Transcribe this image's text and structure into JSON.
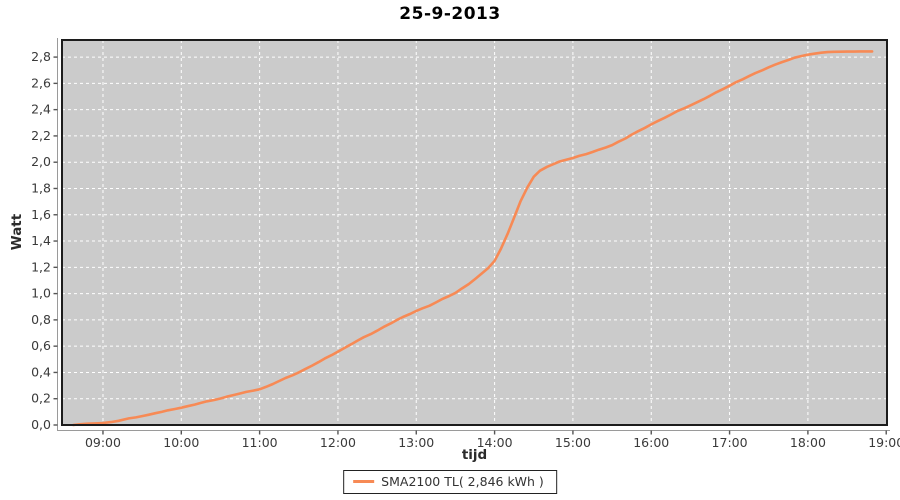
{
  "chart": {
    "title": "25-9-2013",
    "y_axis_title": "Watt",
    "x_axis_title": "tijd",
    "legend_label": "SMA2100 TL( 2,846 kWh )"
  },
  "colors": {
    "plot_bg": "#cbcbcb",
    "grid": "#ffffff",
    "line": "#f78a55",
    "plot_border": "#1c1c1c",
    "axis_line": "#9a9a9a",
    "tick_mark": "#555555",
    "tick_label": "#3a3a3a"
  },
  "chart_data": {
    "type": "line",
    "title": "25-9-2013",
    "xlabel": "tijd",
    "ylabel": "Watt",
    "legend_position": "bottom",
    "grid": true,
    "xlim": [
      8.477,
      19.01
    ],
    "ylim": [
      0,
      2.93
    ],
    "x_ticks": [
      {
        "value": 9,
        "label": "09:00"
      },
      {
        "value": 10,
        "label": "10:00"
      },
      {
        "value": 11,
        "label": "11:00"
      },
      {
        "value": 12,
        "label": "12:00"
      },
      {
        "value": 13,
        "label": "13:00"
      },
      {
        "value": 14,
        "label": "14:00"
      },
      {
        "value": 15,
        "label": "15:00"
      },
      {
        "value": 16,
        "label": "16:00"
      },
      {
        "value": 17,
        "label": "17:00"
      },
      {
        "value": 18,
        "label": "18:00"
      },
      {
        "value": 19,
        "label": "19:00"
      }
    ],
    "y_ticks": [
      {
        "value": 0.0,
        "label": "0,0"
      },
      {
        "value": 0.2,
        "label": "0,2"
      },
      {
        "value": 0.4,
        "label": "0,4"
      },
      {
        "value": 0.6,
        "label": "0,6"
      },
      {
        "value": 0.8,
        "label": "0,8"
      },
      {
        "value": 1.0,
        "label": "1,0"
      },
      {
        "value": 1.2,
        "label": "1,2"
      },
      {
        "value": 1.4,
        "label": "1,4"
      },
      {
        "value": 1.6,
        "label": "1,6"
      },
      {
        "value": 1.8,
        "label": "1,8"
      },
      {
        "value": 2.0,
        "label": "2,0"
      },
      {
        "value": 2.2,
        "label": "2,2"
      },
      {
        "value": 2.4,
        "label": "2,4"
      },
      {
        "value": 2.6,
        "label": "2,6"
      },
      {
        "value": 2.8,
        "label": "2,8"
      }
    ],
    "series": [
      {
        "name": "SMA2100 TL( 2,846 kWh )",
        "color": "#f78a55",
        "total_kwh_label": "2,846 kWh",
        "points": [
          [
            8.62,
            0.0
          ],
          [
            8.7,
            0.005
          ],
          [
            8.8,
            0.01
          ],
          [
            8.9,
            0.012
          ],
          [
            9.0,
            0.015
          ],
          [
            9.1,
            0.022
          ],
          [
            9.2,
            0.032
          ],
          [
            9.33,
            0.05
          ],
          [
            9.42,
            0.058
          ],
          [
            9.5,
            0.068
          ],
          [
            9.58,
            0.078
          ],
          [
            9.67,
            0.09
          ],
          [
            9.75,
            0.1
          ],
          [
            9.83,
            0.112
          ],
          [
            9.92,
            0.122
          ],
          [
            10.0,
            0.132
          ],
          [
            10.08,
            0.143
          ],
          [
            10.17,
            0.155
          ],
          [
            10.25,
            0.168
          ],
          [
            10.33,
            0.18
          ],
          [
            10.42,
            0.19
          ],
          [
            10.5,
            0.202
          ],
          [
            10.58,
            0.215
          ],
          [
            10.67,
            0.228
          ],
          [
            10.75,
            0.24
          ],
          [
            10.83,
            0.252
          ],
          [
            10.92,
            0.262
          ],
          [
            11.0,
            0.272
          ],
          [
            11.08,
            0.29
          ],
          [
            11.17,
            0.312
          ],
          [
            11.25,
            0.335
          ],
          [
            11.33,
            0.358
          ],
          [
            11.42,
            0.378
          ],
          [
            11.5,
            0.4
          ],
          [
            11.58,
            0.425
          ],
          [
            11.67,
            0.452
          ],
          [
            11.75,
            0.478
          ],
          [
            11.83,
            0.505
          ],
          [
            11.92,
            0.532
          ],
          [
            12.0,
            0.558
          ],
          [
            12.08,
            0.585
          ],
          [
            12.17,
            0.615
          ],
          [
            12.25,
            0.642
          ],
          [
            12.33,
            0.668
          ],
          [
            12.42,
            0.692
          ],
          [
            12.5,
            0.718
          ],
          [
            12.58,
            0.745
          ],
          [
            12.67,
            0.772
          ],
          [
            12.75,
            0.798
          ],
          [
            12.83,
            0.822
          ],
          [
            12.92,
            0.845
          ],
          [
            13.0,
            0.868
          ],
          [
            13.08,
            0.888
          ],
          [
            13.17,
            0.908
          ],
          [
            13.25,
            0.932
          ],
          [
            13.33,
            0.958
          ],
          [
            13.42,
            0.982
          ],
          [
            13.5,
            1.005
          ],
          [
            13.58,
            1.038
          ],
          [
            13.67,
            1.072
          ],
          [
            13.75,
            1.11
          ],
          [
            13.83,
            1.15
          ],
          [
            13.92,
            1.195
          ],
          [
            14.0,
            1.25
          ],
          [
            14.08,
            1.34
          ],
          [
            14.17,
            1.46
          ],
          [
            14.25,
            1.58
          ],
          [
            14.33,
            1.7
          ],
          [
            14.42,
            1.81
          ],
          [
            14.5,
            1.89
          ],
          [
            14.58,
            1.935
          ],
          [
            14.67,
            1.965
          ],
          [
            14.75,
            1.985
          ],
          [
            14.83,
            2.005
          ],
          [
            14.92,
            2.02
          ],
          [
            15.0,
            2.032
          ],
          [
            15.08,
            2.048
          ],
          [
            15.17,
            2.062
          ],
          [
            15.25,
            2.078
          ],
          [
            15.33,
            2.095
          ],
          [
            15.42,
            2.112
          ],
          [
            15.5,
            2.13
          ],
          [
            15.58,
            2.155
          ],
          [
            15.67,
            2.18
          ],
          [
            15.75,
            2.21
          ],
          [
            15.83,
            2.235
          ],
          [
            15.92,
            2.262
          ],
          [
            16.0,
            2.288
          ],
          [
            16.08,
            2.312
          ],
          [
            16.17,
            2.338
          ],
          [
            16.25,
            2.362
          ],
          [
            16.33,
            2.388
          ],
          [
            16.42,
            2.41
          ],
          [
            16.5,
            2.432
          ],
          [
            16.58,
            2.455
          ],
          [
            16.67,
            2.48
          ],
          [
            16.75,
            2.505
          ],
          [
            16.83,
            2.532
          ],
          [
            16.92,
            2.558
          ],
          [
            17.0,
            2.582
          ],
          [
            17.08,
            2.608
          ],
          [
            17.17,
            2.632
          ],
          [
            17.25,
            2.655
          ],
          [
            17.33,
            2.678
          ],
          [
            17.42,
            2.7
          ],
          [
            17.5,
            2.722
          ],
          [
            17.58,
            2.742
          ],
          [
            17.67,
            2.762
          ],
          [
            17.75,
            2.778
          ],
          [
            17.83,
            2.795
          ],
          [
            17.92,
            2.808
          ],
          [
            18.0,
            2.818
          ],
          [
            18.08,
            2.826
          ],
          [
            18.17,
            2.833
          ],
          [
            18.25,
            2.838
          ],
          [
            18.33,
            2.84
          ],
          [
            18.42,
            2.841
          ],
          [
            18.5,
            2.842
          ],
          [
            18.58,
            2.842
          ],
          [
            18.67,
            2.843
          ],
          [
            18.75,
            2.843
          ],
          [
            18.82,
            2.843
          ]
        ]
      }
    ]
  }
}
